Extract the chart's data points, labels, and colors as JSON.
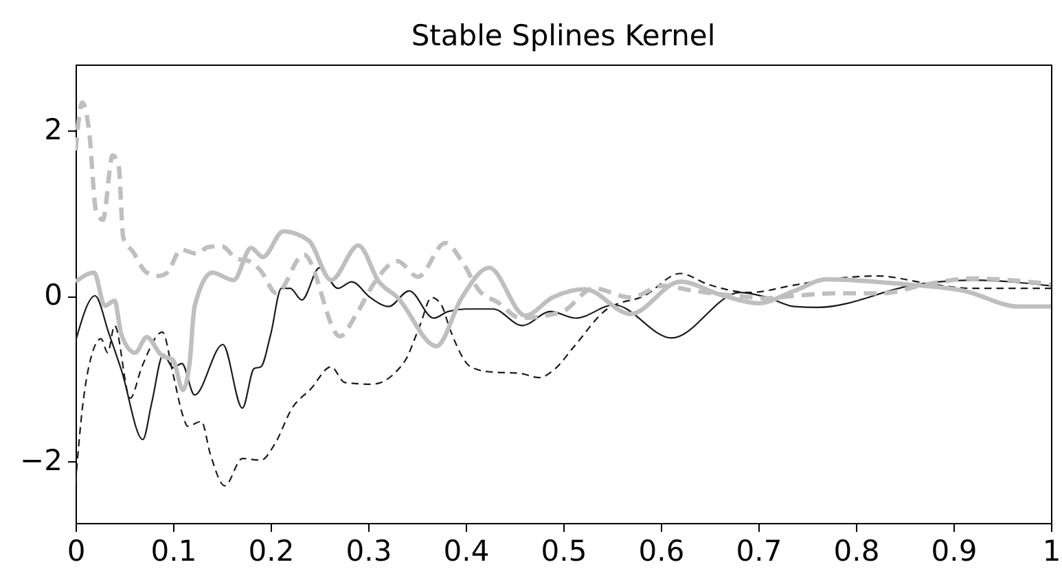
{
  "chart_data": {
    "type": "line",
    "title": "Stable Splines Kernel",
    "xlim": [
      0,
      1
    ],
    "ylim": [
      -2.75,
      2.8
    ],
    "xticks": [
      0,
      0.1,
      0.2,
      0.3,
      0.4,
      0.5,
      0.6,
      0.7,
      0.8,
      0.9,
      1
    ],
    "yticks": [
      -2,
      0,
      2
    ],
    "series": [
      {
        "color": "#1a1a1a",
        "line_style": "solid",
        "x": [
          0,
          0.02,
          0.034,
          0.047,
          0.069,
          0.078,
          0.09,
          0.1,
          0.109,
          0.122,
          0.151,
          0.171,
          0.183,
          0.19,
          0.2,
          0.211,
          0.22,
          0.232,
          0.25,
          0.269,
          0.283,
          0.302,
          0.321,
          0.342,
          0.367,
          0.382,
          0.4,
          0.428,
          0.458,
          0.487,
          0.513,
          0.552,
          0.611,
          0.681,
          0.709,
          0.737,
          0.761,
          0.864,
          0.92,
          1.0
        ],
        "values": [
          -0.55,
          0.0,
          -0.45,
          -0.9,
          -1.74,
          -1.3,
          -0.71,
          -0.87,
          -0.82,
          -1.2,
          -0.59,
          -1.36,
          -0.88,
          -0.86,
          -0.47,
          0.09,
          0.09,
          -0.05,
          0.34,
          0.09,
          0.17,
          -0.02,
          -0.13,
          0.06,
          -0.27,
          -0.19,
          -0.16,
          -0.16,
          -0.36,
          -0.19,
          -0.27,
          -0.11,
          -0.51,
          0.04,
          -0.02,
          -0.13,
          -0.14,
          0.14,
          0.19,
          0.12
        ]
      },
      {
        "color": "#1a1a1a",
        "line_style": "dashed",
        "x": [
          0,
          0.007,
          0.016,
          0.026,
          0.033,
          0.04,
          0.056,
          0.068,
          0.089,
          0.1,
          0.11,
          0.115,
          0.129,
          0.138,
          0.153,
          0.171,
          0.19,
          0.204,
          0.222,
          0.241,
          0.262,
          0.276,
          0.304,
          0.337,
          0.353,
          0.365,
          0.375,
          0.384,
          0.405,
          0.424,
          0.456,
          0.475,
          0.492,
          0.51,
          0.545,
          0.583,
          0.62,
          0.648,
          0.691,
          0.737,
          0.78,
          0.822,
          0.878,
          0.92,
          1.0
        ],
        "values": [
          -2.26,
          -1.36,
          -0.74,
          -0.52,
          -0.69,
          -0.36,
          -1.24,
          -0.86,
          -0.44,
          -0.95,
          -1.45,
          -1.58,
          -1.52,
          -1.91,
          -2.3,
          -1.97,
          -1.99,
          -1.8,
          -1.36,
          -1.13,
          -0.86,
          -1.05,
          -1.07,
          -0.8,
          -0.36,
          -0.02,
          -0.11,
          -0.41,
          -0.86,
          -0.92,
          -0.94,
          -0.99,
          -0.88,
          -0.63,
          -0.16,
          0.0,
          0.27,
          0.14,
          0.04,
          0.13,
          0.21,
          0.24,
          0.14,
          0.09,
          0.09
        ]
      },
      {
        "color": "#bfbfbf",
        "line_style": "solid",
        "x": [
          0,
          0.019,
          0.03,
          0.04,
          0.047,
          0.061,
          0.073,
          0.088,
          0.1,
          0.11,
          0.117,
          0.122,
          0.14,
          0.162,
          0.18,
          0.192,
          0.213,
          0.239,
          0.262,
          0.29,
          0.311,
          0.33,
          0.37,
          0.396,
          0.424,
          0.461,
          0.489,
          0.522,
          0.569,
          0.62,
          0.662,
          0.7,
          0.737,
          0.77,
          0.85,
          0.911,
          0.967,
          1.0
        ],
        "values": [
          0.17,
          0.28,
          -0.12,
          -0.06,
          -0.47,
          -0.69,
          -0.5,
          -0.72,
          -0.78,
          -1.14,
          -0.8,
          -0.13,
          0.28,
          0.19,
          0.58,
          0.47,
          0.78,
          0.67,
          0.19,
          0.61,
          0.17,
          -0.02,
          -0.61,
          -0.02,
          0.34,
          -0.24,
          -0.02,
          0.08,
          -0.22,
          0.17,
          0.01,
          -0.09,
          0.06,
          0.2,
          0.14,
          0.06,
          -0.13,
          -0.13
        ]
      },
      {
        "color": "#bfbfbf",
        "line_style": "dashed",
        "x": [
          0,
          0.007,
          0.014,
          0.021,
          0.028,
          0.038,
          0.044,
          0.049,
          0.059,
          0.073,
          0.085,
          0.094,
          0.108,
          0.124,
          0.136,
          0.15,
          0.165,
          0.178,
          0.19,
          0.206,
          0.234,
          0.271,
          0.288,
          0.307,
          0.33,
          0.351,
          0.379,
          0.396,
          0.414,
          0.433,
          0.456,
          0.499,
          0.531,
          0.569,
          0.602,
          0.634,
          0.677,
          0.709,
          0.737,
          0.78,
          0.826,
          0.873,
          0.92,
          1.0
        ],
        "values": [
          1.76,
          2.34,
          1.98,
          1.03,
          0.92,
          1.7,
          1.59,
          0.7,
          0.53,
          0.28,
          0.24,
          0.28,
          0.56,
          0.51,
          0.59,
          0.6,
          0.45,
          0.42,
          0.3,
          0.03,
          0.5,
          -0.49,
          -0.22,
          0.17,
          0.42,
          0.23,
          0.64,
          0.42,
          0.06,
          -0.08,
          -0.27,
          -0.19,
          0.09,
          -0.02,
          0.12,
          0.06,
          0.0,
          -0.03,
          0.0,
          0.03,
          0.03,
          0.14,
          0.21,
          0.14
        ]
      }
    ]
  }
}
